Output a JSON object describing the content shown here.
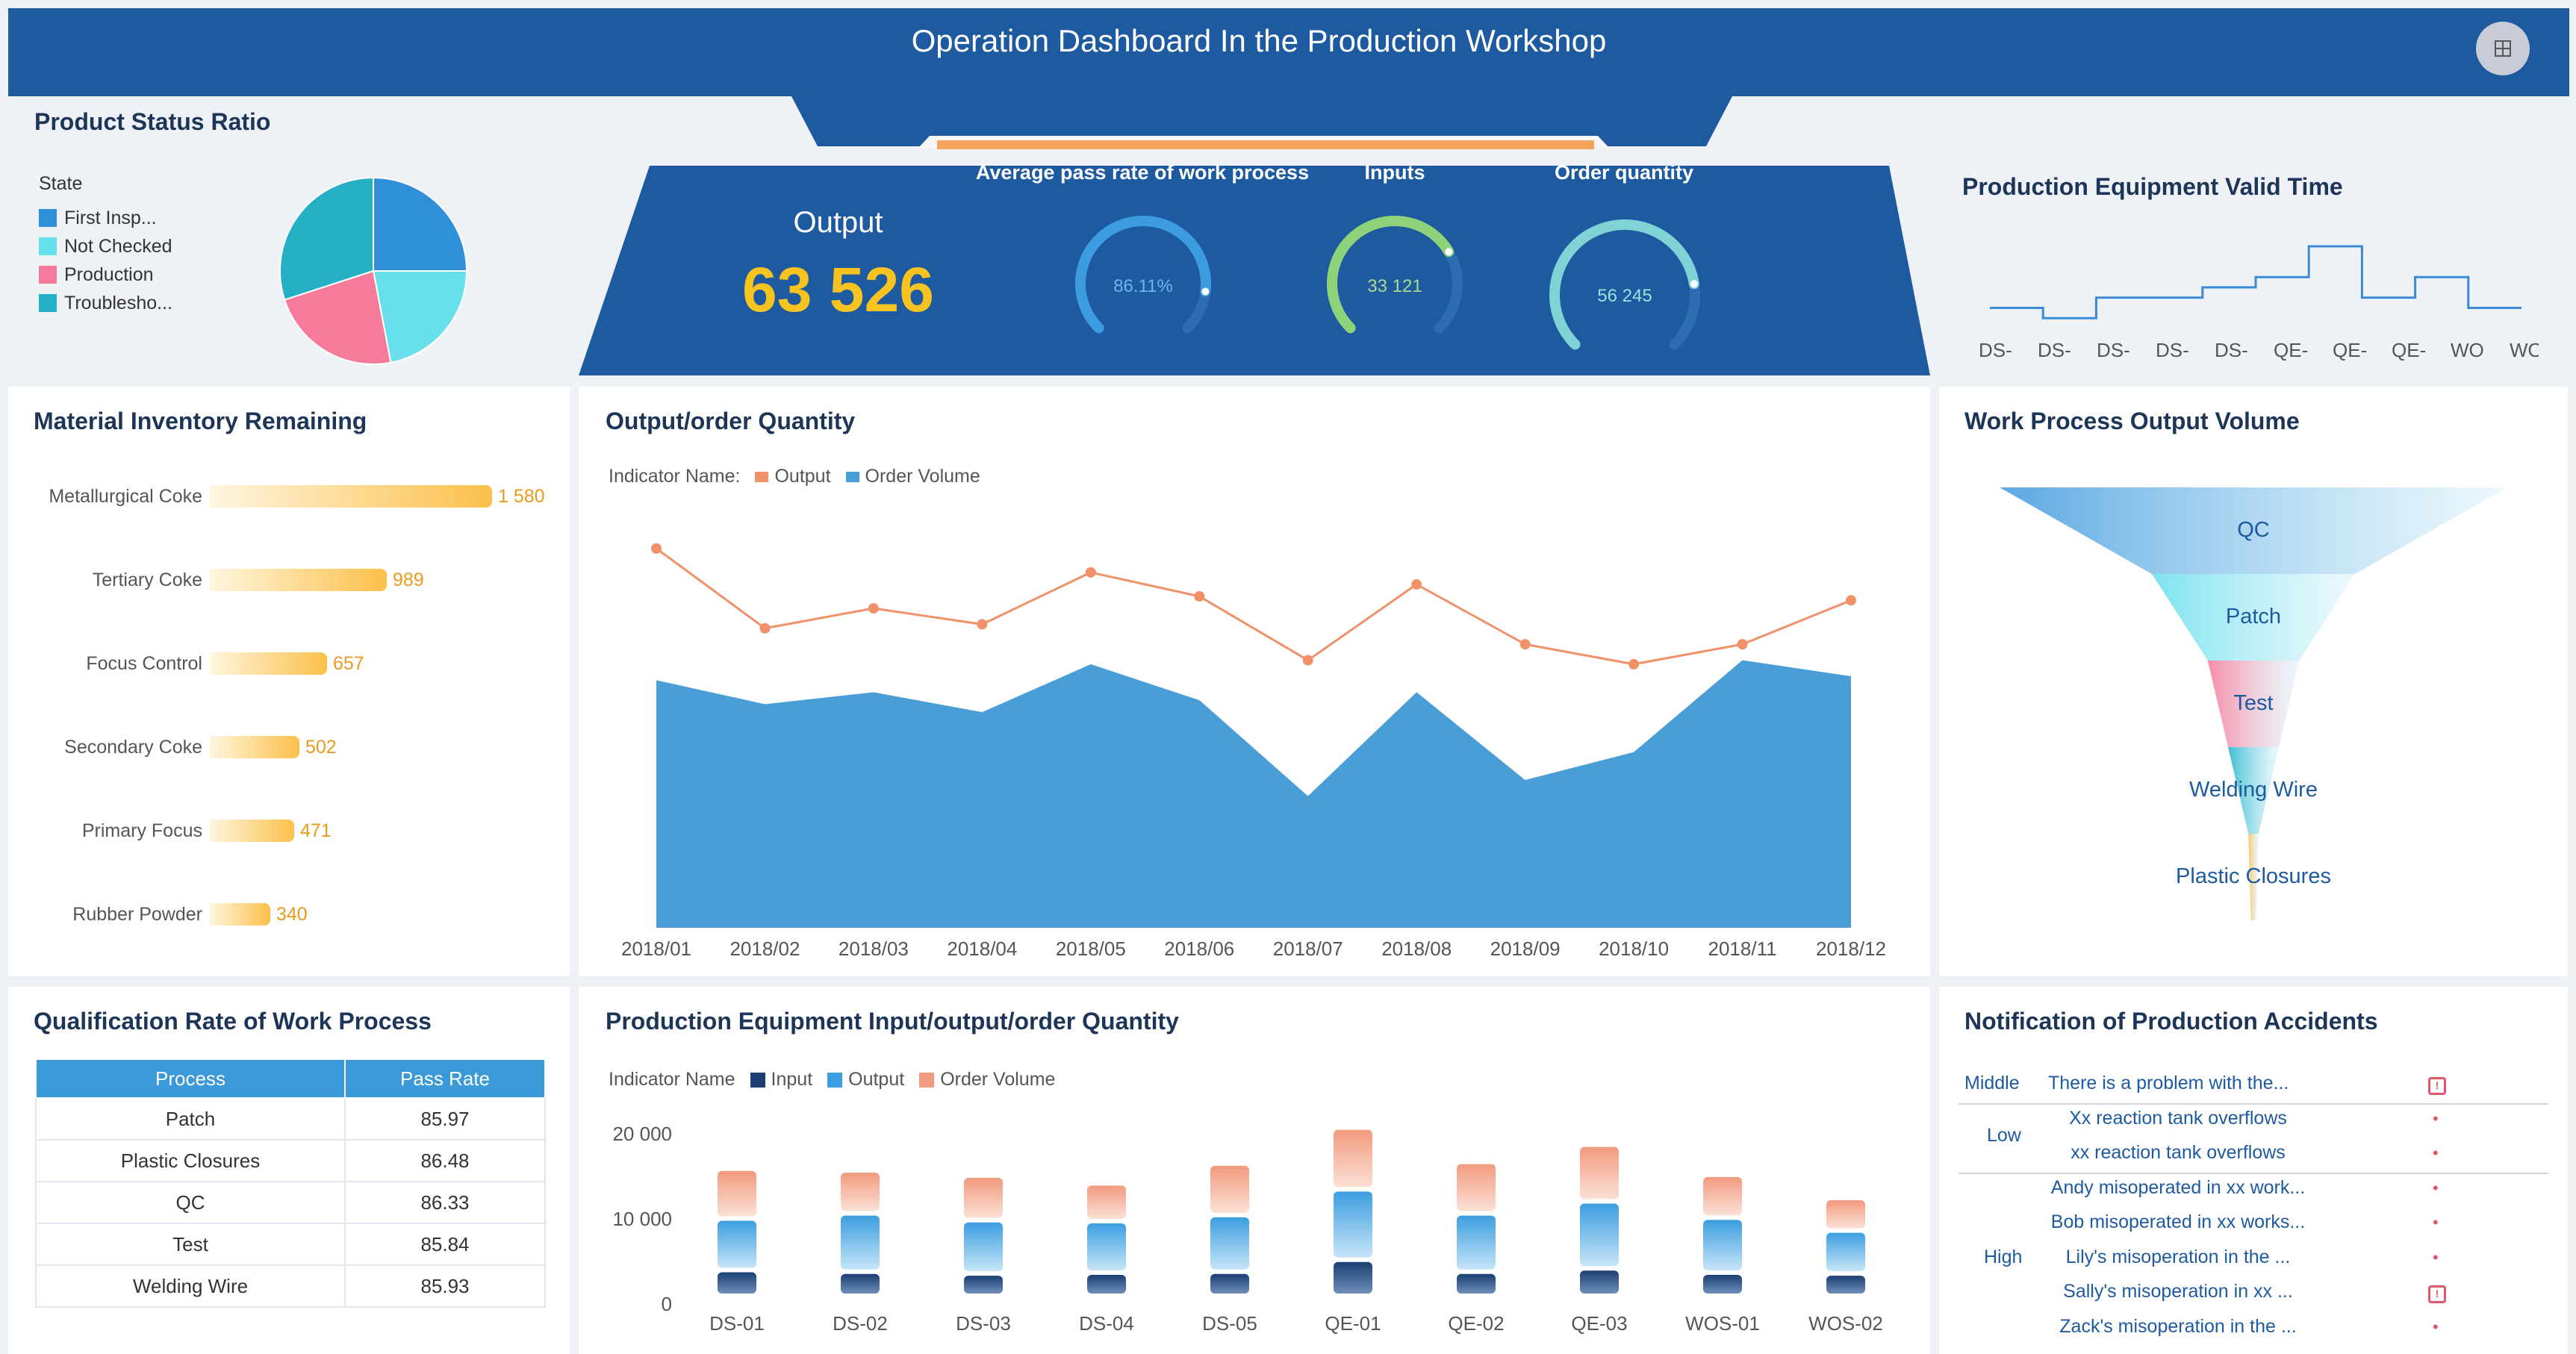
{
  "header": {
    "title": "Operation Dashboard In the Production Workshop",
    "grid_icon": "grid-icon"
  },
  "status_ratio": {
    "title": "Product Status Ratio",
    "legend_title": "State",
    "items": [
      {
        "label": "First Insp...",
        "color": "#2f8fd8",
        "share": 0.25
      },
      {
        "label": "Not Checked",
        "color": "#68e0ec",
        "share": 0.22
      },
      {
        "label": "Production",
        "color": "#f67a9a",
        "share": 0.23
      },
      {
        "label": "Troublesho...",
        "color": "#25b0c5",
        "share": 0.3
      }
    ]
  },
  "kpis": {
    "output_label": "Output",
    "output_value": "63 526",
    "gauges": [
      {
        "label": "Average pass rate of work process",
        "value": "86.11%",
        "fraction": 0.86,
        "color": "#3d9be0"
      },
      {
        "label": "Inputs",
        "value": "33 121",
        "fraction": 0.72,
        "color": "#8ed27a"
      },
      {
        "label": "Order quantity",
        "value": "56 245",
        "fraction": 0.8,
        "color": "#7fd3d5"
      }
    ]
  },
  "valid_time": {
    "title": "Production Equipment Valid Time",
    "categories": [
      "DS-",
      "DS-",
      "DS-",
      "DS-",
      "DS-",
      "QE-",
      "QE-",
      "QE-",
      "WO",
      "WO"
    ],
    "values": [
      2,
      1,
      3,
      3,
      4,
      5,
      8,
      3,
      5,
      2
    ]
  },
  "inventory": {
    "title": "Material Inventory Remaining",
    "items": [
      {
        "label": "Metallurgical Coke",
        "value": 1580,
        "text": "1 580"
      },
      {
        "label": "Tertiary Coke",
        "value": 989,
        "text": "989"
      },
      {
        "label": "Focus Control",
        "value": 657,
        "text": "657"
      },
      {
        "label": "Secondary Coke",
        "value": 502,
        "text": "502"
      },
      {
        "label": "Primary Focus",
        "value": 471,
        "text": "471"
      },
      {
        "label": "Rubber Powder",
        "value": 340,
        "text": "340"
      }
    ]
  },
  "output_order": {
    "title": "Output/order Quantity",
    "legend_label": "Indicator Name:",
    "chart_data": {
      "type": "line",
      "categories": [
        "2018/01",
        "2018/02",
        "2018/03",
        "2018/04",
        "2018/05",
        "2018/06",
        "2018/07",
        "2018/08",
        "2018/09",
        "2018/10",
        "2018/11",
        "2018/12"
      ],
      "series": [
        {
          "name": "Output",
          "type": "line",
          "color": "#f0916a",
          "values": [
            95,
            75,
            80,
            76,
            89,
            83,
            67,
            86,
            71,
            66,
            71,
            82
          ]
        },
        {
          "name": "Order Volume",
          "type": "area",
          "color": "#4a9ed8",
          "values": [
            62,
            56,
            59,
            54,
            66,
            57,
            33,
            59,
            37,
            44,
            67,
            63
          ]
        }
      ],
      "ylim": [
        0,
        100
      ]
    }
  },
  "funnel": {
    "title": "Work Process Output Volume",
    "stages": [
      {
        "label": "QC",
        "value": 100,
        "color": "#5aa8e2"
      },
      {
        "label": "Patch",
        "value": 40,
        "color": "#7ce3ef"
      },
      {
        "label": "Test",
        "value": 18,
        "color": "#f78ca8"
      },
      {
        "label": "Welding Wire",
        "value": 10,
        "color": "#3fc0d3"
      },
      {
        "label": "Plastic Closures",
        "value": 2,
        "color": "#f6c86a"
      }
    ]
  },
  "qualification": {
    "title": "Qualification Rate of Work Process",
    "headers": [
      "Process",
      "Pass Rate"
    ],
    "rows": [
      [
        "Patch",
        "85.97"
      ],
      [
        "Plastic Closures",
        "86.48"
      ],
      [
        "QC",
        "86.33"
      ],
      [
        "Test",
        "85.84"
      ],
      [
        "Welding Wire",
        "85.93"
      ]
    ]
  },
  "equipment": {
    "title": "Production Equipment Input/output/order Quantity",
    "legend_label": "Indicator Name",
    "chart_data": {
      "type": "bar",
      "categories": [
        "DS-01",
        "DS-02",
        "DS-03",
        "DS-04",
        "DS-05",
        "QE-01",
        "QE-02",
        "QE-03",
        "WOS-01",
        "WOS-02"
      ],
      "series": [
        {
          "name": "Input",
          "color": "#1b3f73",
          "values": [
            3000,
            2800,
            2600,
            2700,
            2800,
            4200,
            2800,
            3200,
            2700,
            2600
          ]
        },
        {
          "name": "Output",
          "color": "#3c9ee0",
          "values": [
            6000,
            6800,
            6200,
            6000,
            6600,
            8200,
            6800,
            7800,
            6400,
            5000
          ]
        },
        {
          "name": "Order Volume",
          "color": "#f29a7e",
          "values": [
            5800,
            5000,
            5200,
            4400,
            6000,
            7200,
            6000,
            6600,
            5000,
            3800
          ]
        }
      ],
      "yticks": [
        "20 000",
        "10 000",
        "0"
      ],
      "ylim": [
        0,
        20000
      ]
    }
  },
  "accidents": {
    "title": "Notification of Production Accidents",
    "groups": [
      {
        "level": "Middle",
        "items": [
          {
            "text": "There is a problem with the...",
            "icon": "alert-big"
          }
        ]
      },
      {
        "level": "Low",
        "items": [
          {
            "text": "Xx reaction tank overflows",
            "icon": "alert-small"
          },
          {
            "text": "xx reaction tank overflows",
            "icon": "alert-small"
          }
        ]
      },
      {
        "level": "High",
        "items": [
          {
            "text": "Andy misoperated in xx work...",
            "icon": "alert-small"
          },
          {
            "text": "Bob misoperated in xx works...",
            "icon": "alert-small"
          },
          {
            "text": "Lily's misoperation in the ...",
            "icon": "alert-small"
          },
          {
            "text": "Sally's misoperation in xx ...",
            "icon": "alert-big"
          },
          {
            "text": "Zack's misoperation in the ...",
            "icon": "alert-small"
          }
        ]
      }
    ]
  }
}
